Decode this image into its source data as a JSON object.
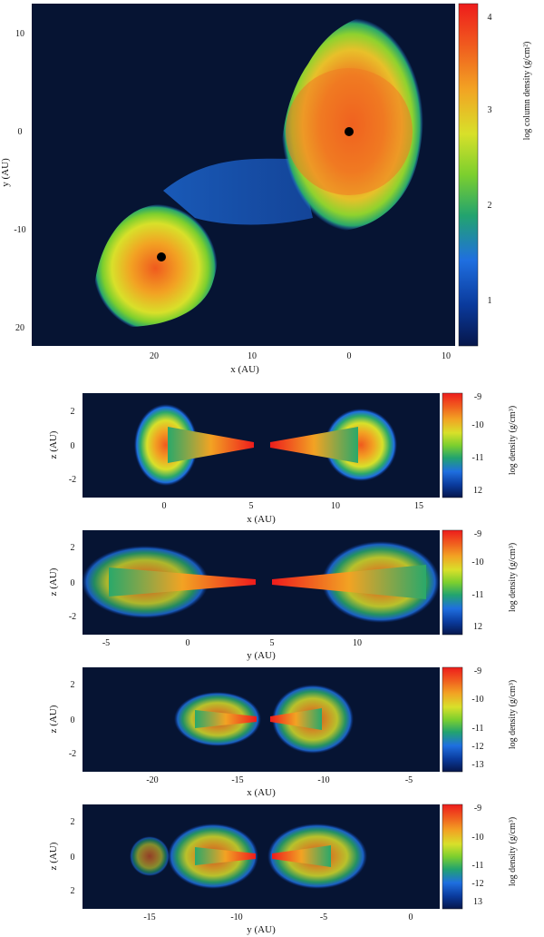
{
  "top_panel": {
    "ylabel": "y (AU)",
    "xlabel": "x (AU)",
    "y_ticks": [
      "10",
      "0",
      "-10",
      "20"
    ],
    "x_ticks": [
      "20",
      "10",
      "0",
      "10"
    ],
    "colorbar_label": "log column density (g/cm²)",
    "colorbar_ticks": [
      "4",
      "3",
      "2",
      "1"
    ]
  },
  "slices": [
    {
      "ylabel": "z (AU)",
      "xlabel": "x (AU)",
      "y_ticks": [
        "2",
        "0",
        "-2"
      ],
      "x_ticks": [
        "0",
        "5",
        "10",
        "15"
      ],
      "colorbar_label": "log density (g/cm³)",
      "colorbar_ticks": [
        "-9",
        "-10",
        "-11",
        "12"
      ]
    },
    {
      "ylabel": "z (AU)",
      "xlabel": "y (AU)",
      "y_ticks": [
        "2",
        "0",
        "-2"
      ],
      "x_ticks": [
        "-5",
        "0",
        "5",
        "10"
      ],
      "colorbar_label": "log density (g/cm³)",
      "colorbar_ticks": [
        "-9",
        "-10",
        "-11",
        "12"
      ]
    },
    {
      "ylabel": "z (AU)",
      "xlabel": "x (AU)",
      "y_ticks": [
        "2",
        "0",
        "-2"
      ],
      "x_ticks": [
        "-20",
        "-15",
        "-10",
        "-5"
      ],
      "colorbar_label": "log density (g/cm³)",
      "colorbar_ticks": [
        "-9",
        "-10",
        "-11",
        "-12",
        "-13"
      ]
    },
    {
      "ylabel": "z (AU)",
      "xlabel": "y (AU)",
      "y_ticks": [
        "2",
        "0",
        "2"
      ],
      "x_ticks": [
        "-15",
        "-10",
        "-5",
        "0"
      ],
      "colorbar_label": "log density (g/cm³)",
      "colorbar_ticks": [
        "-9",
        "-10",
        "-11",
        "-12",
        "13"
      ]
    }
  ],
  "colors": {
    "background": "#061433",
    "colormap": [
      "#06164a",
      "#0a3a9c",
      "#1f6fe0",
      "#2aa86a",
      "#7ccf2e",
      "#d8e02a",
      "#f2a323",
      "#f05a1e",
      "#ee1c1c"
    ]
  }
}
